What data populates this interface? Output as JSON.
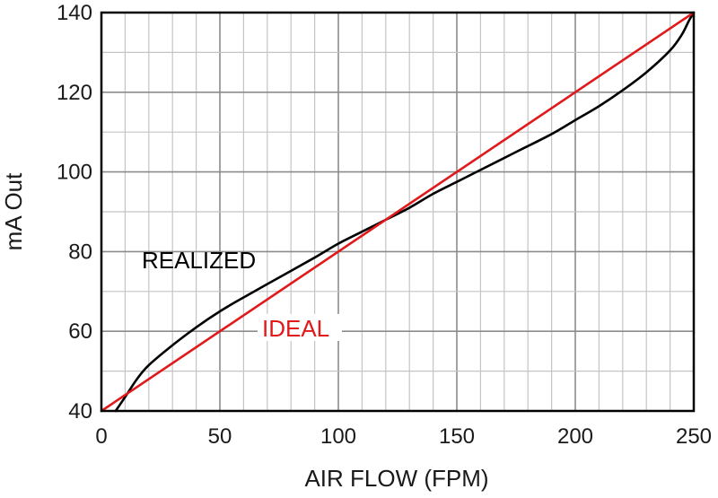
{
  "chart_data": {
    "type": "line",
    "title": "",
    "xlabel": "AIR FLOW (FPM)",
    "ylabel": "mA Out",
    "xlim": [
      0,
      250
    ],
    "ylim": [
      40,
      140
    ],
    "x_ticks": [
      "0",
      "50",
      "100",
      "150",
      "200",
      "250"
    ],
    "y_ticks": [
      "40",
      "60",
      "80",
      "100",
      "120",
      "140"
    ],
    "grid": true,
    "annotations": [
      {
        "text": "REALIZED",
        "color": "#000000"
      },
      {
        "text": "IDEAL",
        "color": "#e0191b"
      }
    ],
    "series": [
      {
        "name": "REALIZED",
        "color": "#000000",
        "x": [
          6,
          10,
          15,
          20,
          30,
          40,
          50,
          60,
          75,
          90,
          100,
          110,
          120,
          130,
          140,
          150,
          160,
          175,
          190,
          200,
          210,
          220,
          230,
          240,
          245,
          248,
          250
        ],
        "y": [
          40,
          43.5,
          48,
          51.5,
          56.5,
          61,
          65,
          68.5,
          73.5,
          78.5,
          82,
          85,
          88,
          91,
          94.5,
          97.5,
          100.5,
          105,
          109.5,
          113,
          116.5,
          120.5,
          125,
          130.5,
          134.5,
          138,
          140
        ]
      },
      {
        "name": "IDEAL",
        "color": "#e0191b",
        "x": [
          0,
          250
        ],
        "y": [
          40,
          140
        ]
      }
    ]
  }
}
